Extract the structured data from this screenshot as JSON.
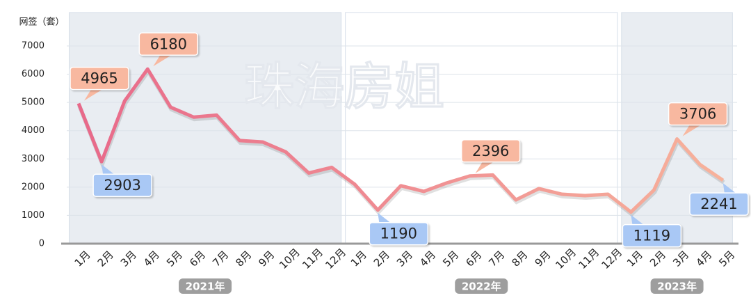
{
  "chart_data": {
    "type": "line",
    "y_axis_label": "网签（套）",
    "watermark": "珠海房姐",
    "categories": [
      "1月",
      "2月",
      "3月",
      "4月",
      "5月",
      "6月",
      "7月",
      "8月",
      "9月",
      "10月",
      "11月",
      "12月",
      "1月",
      "2月",
      "3月",
      "4月",
      "5月",
      "6月",
      "7月",
      "8月",
      "9月",
      "10月",
      "11月",
      "12月",
      "1月",
      "2月",
      "3月",
      "4月",
      "5月"
    ],
    "groups": [
      {
        "label": "2021年",
        "start": 0,
        "end": 11,
        "shaded": true
      },
      {
        "label": "2022年",
        "start": 12,
        "end": 23,
        "shaded": false
      },
      {
        "label": "2023年",
        "start": 24,
        "end": 28,
        "shaded": true
      }
    ],
    "series": [
      {
        "colors": [
          "#e8698a",
          "#f7b29b"
        ],
        "values": [
          4965,
          2903,
          5050,
          6180,
          4830,
          4480,
          4550,
          3650,
          3600,
          3250,
          2500,
          2700,
          2100,
          1190,
          2050,
          1850,
          2150,
          2396,
          2430,
          1550,
          1950,
          1750,
          1700,
          1750,
          1119,
          1900,
          3706,
          2800,
          2241
        ]
      }
    ],
    "labeled_points": [
      {
        "point": 0,
        "kind": "peak",
        "color": "#f8b8a0"
      },
      {
        "point": 1,
        "kind": "trough",
        "color": "#a9c8f5"
      },
      {
        "point": 3,
        "kind": "peak",
        "color": "#f8b8a0"
      },
      {
        "point": 13,
        "kind": "trough",
        "color": "#a9c8f5"
      },
      {
        "point": 17,
        "kind": "peak",
        "color": "#f8b8a0"
      },
      {
        "point": 24,
        "kind": "trough",
        "color": "#a9c8f5"
      },
      {
        "point": 26,
        "kind": "peak",
        "color": "#f8b8a0"
      },
      {
        "point": 28,
        "kind": "trough",
        "color": "#a9c8f5"
      }
    ],
    "ylim": [
      0,
      7000
    ],
    "yticks": [
      0,
      1000,
      2000,
      3000,
      4000,
      5000,
      6000,
      7000
    ],
    "grid": true
  }
}
